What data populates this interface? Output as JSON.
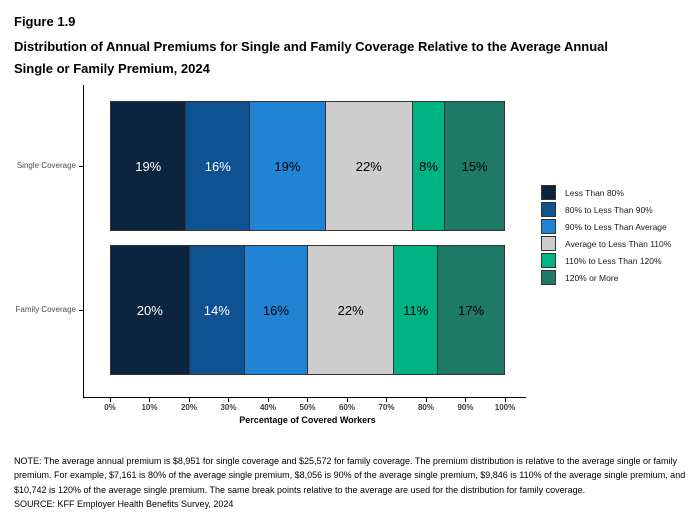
{
  "figure_label": "Figure 1.9",
  "title": "Distribution of Annual Premiums for Single and Family Coverage Relative to the Average Annual Single or Family Premium, 2024",
  "chart_data": {
    "type": "bar",
    "orientation": "horizontal",
    "stacked": true,
    "grid": false,
    "legend_position": "right",
    "categories": [
      "Single Coverage",
      "Family Coverage"
    ],
    "series": [
      {
        "name": "Less Than 80%",
        "color": "#0b2440",
        "label_color": "#ffffff",
        "values": [
          19,
          20
        ]
      },
      {
        "name": "80% to Less Than 90%",
        "color": "#0e5291",
        "label_color": "#ffffff",
        "values": [
          16,
          14
        ]
      },
      {
        "name": "90% to Less Than Average",
        "color": "#2183d4",
        "label_color": "#000000",
        "values": [
          19,
          16
        ]
      },
      {
        "name": "Average to Less Than 110%",
        "color": "#cdcdcd",
        "label_color": "#000000",
        "values": [
          22,
          22
        ]
      },
      {
        "name": "110% to Less Than 120%",
        "color": "#00b384",
        "label_color": "#000000",
        "values": [
          8,
          11
        ]
      },
      {
        "name": "120% or More",
        "color": "#1e7a66",
        "label_color": "#000000",
        "values": [
          15,
          17
        ]
      }
    ],
    "value_suffix": "%",
    "xlabel": "Percentage of Covered Workers",
    "x_ticks": [
      "0%",
      "10%",
      "20%",
      "30%",
      "40%",
      "50%",
      "60%",
      "70%",
      "80%",
      "90%",
      "100%"
    ],
    "xlim": [
      0,
      100
    ]
  },
  "note": "NOTE: The average annual premium is $8,951 for single coverage and $25,572 for family coverage. The premium distribution is relative to the average single or family premium. For example, $7,161 is 80% of the average single premium, $8,056 is 90% of the average single premium, $9,846 is 110% of the average single premium, and $10,742 is 120% of the average single premium. The same break points relative to the average are used for the distribution for family coverage.",
  "source": "SOURCE: KFF Employer Health Benefits Survey, 2024"
}
